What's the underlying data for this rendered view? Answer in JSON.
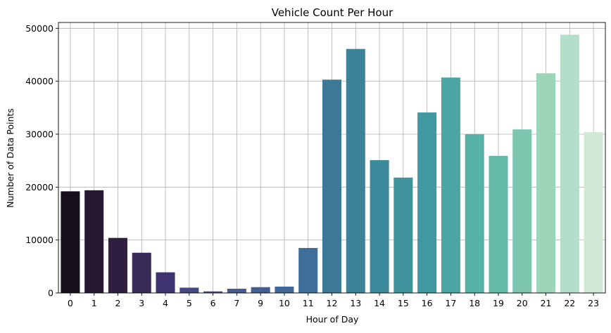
{
  "chart_data": {
    "type": "bar",
    "title": "Vehicle Count Per Hour",
    "xlabel": "Hour of Day",
    "ylabel": "Number of Data Points",
    "categories": [
      "0",
      "1",
      "2",
      "3",
      "4",
      "5",
      "6",
      "7",
      "9",
      "10",
      "11",
      "12",
      "13",
      "14",
      "15",
      "16",
      "17",
      "18",
      "19",
      "20",
      "21",
      "22",
      "23"
    ],
    "values": [
      19200,
      19400,
      10400,
      7600,
      3900,
      1000,
      300,
      800,
      1100,
      1200,
      8500,
      40300,
      46100,
      25100,
      21800,
      34100,
      40700,
      30000,
      25900,
      30900,
      41500,
      48800,
      30400
    ],
    "colors": [
      "#180f1c",
      "#261a33",
      "#2e1f41",
      "#382a57",
      "#3f3270",
      "#434882",
      "#474e88",
      "#445c93",
      "#425f94",
      "#41689a",
      "#3e6e99",
      "#3b7996",
      "#3c8298",
      "#3d8a9c",
      "#3f939d",
      "#4098a0",
      "#4aa5a3",
      "#56b1a6",
      "#64baa9",
      "#7dc5ae",
      "#9cd5b7",
      "#b3deca",
      "#cfe9d5"
    ],
    "ylim": [
      0,
      51100
    ],
    "yticks": [
      0,
      10000,
      20000,
      30000,
      40000,
      50000
    ],
    "grid": true
  }
}
